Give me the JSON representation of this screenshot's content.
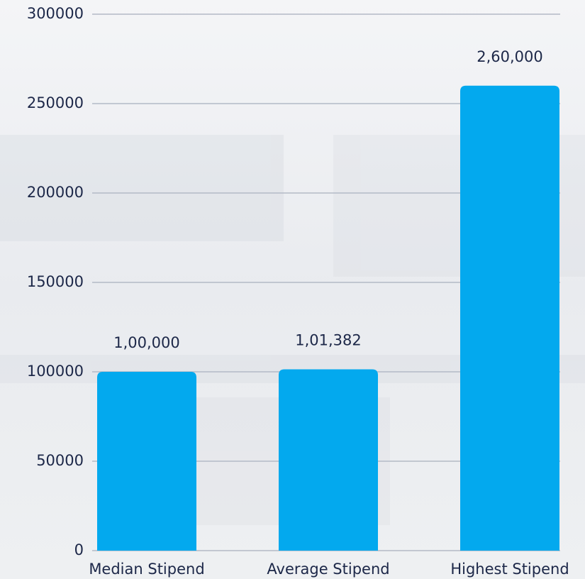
{
  "chart_data": {
    "type": "bar",
    "categories": [
      "Median Stipend",
      "Average Stipend",
      "Highest Stipend"
    ],
    "values": [
      100000,
      101382,
      260000
    ],
    "value_labels": [
      "1,00,000",
      "1,01,382",
      "2,60,000"
    ],
    "color": "#03a9ee",
    "ylim": [
      0,
      300000
    ],
    "yticks": [
      0,
      50000,
      100000,
      150000,
      200000,
      250000,
      300000
    ],
    "grid": true
  }
}
